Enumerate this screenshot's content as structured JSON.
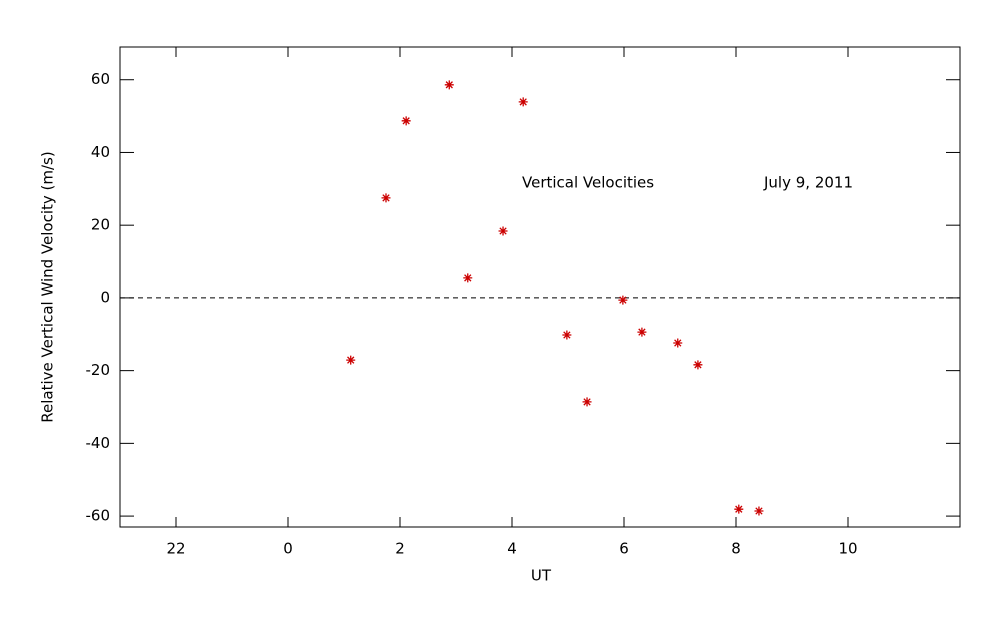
{
  "chart_data": {
    "type": "scatter",
    "xlabel": "UT",
    "ylabel": "Relative Vertical Wind Velocity (m/s)",
    "annotations": [
      "Vertical Velocities",
      "July 9, 2011"
    ],
    "xlim": [
      -3,
      12
    ],
    "xticks": [
      {
        "value": -2,
        "label": "22"
      },
      0,
      2,
      4,
      6,
      8,
      10
    ],
    "ylim": [
      -63,
      69
    ],
    "yticks": [
      -60,
      -40,
      -20,
      0,
      20,
      40,
      60
    ],
    "hline": 0,
    "color": "#cc0000",
    "x": [
      1.12,
      1.75,
      2.11,
      2.88,
      3.21,
      3.84,
      4.2,
      4.98,
      5.34,
      5.98,
      6.32,
      6.96,
      7.32,
      8.05,
      8.41
    ],
    "values": [
      -17.1,
      27.5,
      48.7,
      58.6,
      5.5,
      18.4,
      53.9,
      -10.2,
      -28.6,
      -0.6,
      -9.4,
      -12.4,
      -18.4,
      -58.1,
      -58.6
    ]
  }
}
